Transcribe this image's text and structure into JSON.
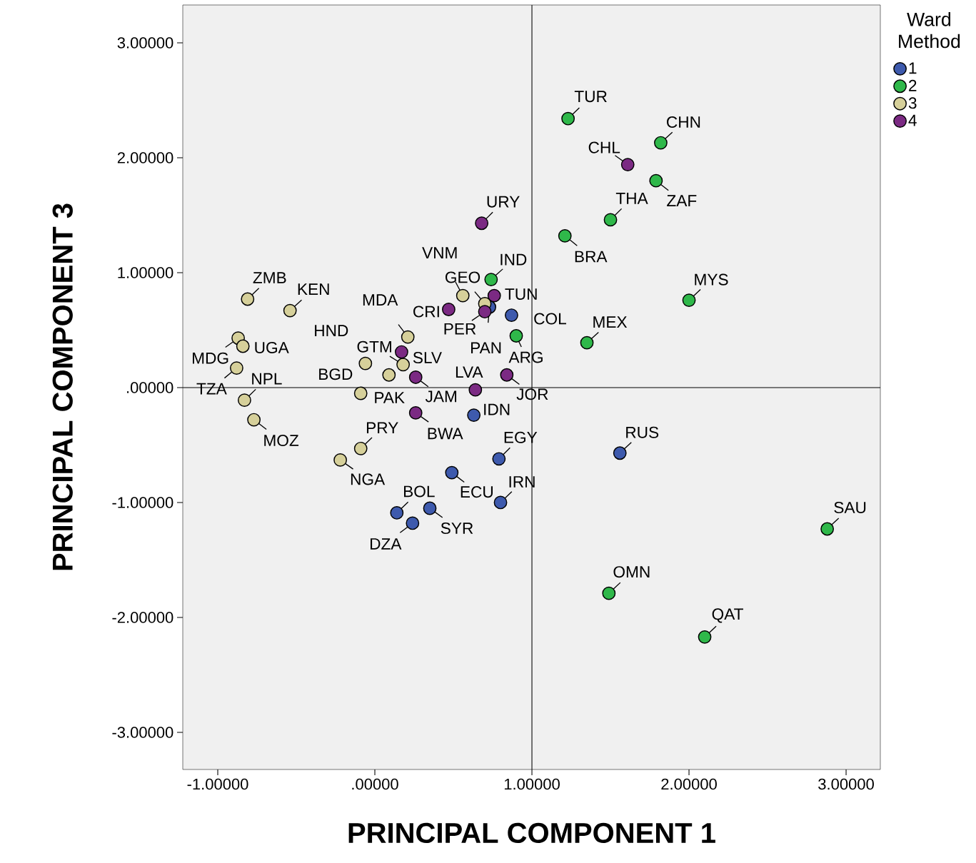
{
  "chart_data": {
    "type": "scatter",
    "xlabel": "PRINCIPAL COMPONENT 1",
    "ylabel": "PRINCIPAL COMPONENT 3",
    "legend_title": "Ward Method",
    "legend": "top right",
    "marker": "circle",
    "grid": false,
    "xlim": [
      -1.2227,
      3.218
    ],
    "ylim": [
      -3.323,
      3.329
    ],
    "xticks": [
      {
        "value": -1,
        "label": "-1.00000"
      },
      {
        "value": 0,
        "label": ".00000"
      },
      {
        "value": 1,
        "label": "1.00000"
      },
      {
        "value": 2,
        "label": "2.00000"
      },
      {
        "value": 3,
        "label": "3.00000"
      }
    ],
    "yticks": [
      {
        "value": -3,
        "label": "-3.00000"
      },
      {
        "value": -2,
        "label": "-2.00000"
      },
      {
        "value": -1,
        "label": "-1.00000"
      },
      {
        "value": 0,
        "label": ".00000"
      },
      {
        "value": 1,
        "label": "1.00000"
      },
      {
        "value": 2,
        "label": "2.00000"
      },
      {
        "value": 3,
        "label": "3.00000"
      }
    ],
    "ref_lines": [
      {
        "axis": "x",
        "value": 1
      },
      {
        "axis": "y",
        "value": 0
      }
    ],
    "series": [
      {
        "name": "1",
        "color": "#3e5aad",
        "x": [
          0.73,
          0.87,
          0.63,
          0.79,
          0.49,
          0.8,
          0.14,
          0.35,
          0.24,
          1.56
        ],
        "values": [
          0.7,
          0.63,
          -0.24,
          -0.62,
          -0.74,
          -1.0,
          -1.09,
          -1.05,
          -1.18,
          -0.57
        ]
      },
      {
        "name": "2",
        "color": "#2fb84a",
        "x": [
          1.23,
          1.82,
          1.79,
          1.5,
          1.21,
          2.0,
          1.35,
          0.74,
          0.9,
          2.88,
          1.49,
          2.1
        ],
        "values": [
          2.34,
          2.13,
          1.8,
          1.46,
          1.32,
          0.76,
          0.39,
          0.94,
          0.45,
          -1.23,
          -1.79,
          -2.17
        ]
      },
      {
        "name": "3",
        "color": "#d6d09a",
        "x": [
          -0.81,
          -0.54,
          -0.87,
          -0.84,
          -0.88,
          -0.83,
          -0.77,
          -0.06,
          0.18,
          0.09,
          -0.09,
          -0.09,
          -0.22,
          0.21,
          0.56,
          0.7
        ],
        "values": [
          0.77,
          0.67,
          0.43,
          0.36,
          0.17,
          -0.11,
          -0.28,
          0.21,
          0.2,
          0.11,
          -0.05,
          -0.53,
          -0.63,
          0.44,
          0.8,
          0.73
        ]
      },
      {
        "name": "4",
        "color": "#7b2a83",
        "x": [
          1.61,
          0.68,
          0.47,
          0.7,
          0.76,
          0.17,
          0.26,
          0.64,
          0.84,
          0.26
        ],
        "values": [
          1.94,
          1.43,
          0.68,
          0.66,
          0.8,
          0.31,
          0.09,
          -0.02,
          0.11,
          -0.22
        ]
      }
    ],
    "annotations": [
      {
        "text": "PAN",
        "x": 0.73,
        "y": 0.7
      },
      {
        "text": "COL",
        "x": 0.87,
        "y": 0.63
      },
      {
        "text": "IDN",
        "x": 0.63,
        "y": -0.24
      },
      {
        "text": "EGY",
        "x": 0.79,
        "y": -0.62
      },
      {
        "text": "ECU",
        "x": 0.49,
        "y": -0.74
      },
      {
        "text": "IRN",
        "x": 0.8,
        "y": -1.0
      },
      {
        "text": "BOL",
        "x": 0.14,
        "y": -1.09
      },
      {
        "text": "SYR",
        "x": 0.35,
        "y": -1.05
      },
      {
        "text": "DZA",
        "x": 0.24,
        "y": -1.18
      },
      {
        "text": "RUS",
        "x": 1.56,
        "y": -0.57
      },
      {
        "text": "TUR",
        "x": 1.23,
        "y": 2.34
      },
      {
        "text": "CHN",
        "x": 1.82,
        "y": 2.13
      },
      {
        "text": "ZAF",
        "x": 1.79,
        "y": 1.8
      },
      {
        "text": "THA",
        "x": 1.5,
        "y": 1.46
      },
      {
        "text": "BRA",
        "x": 1.21,
        "y": 1.32
      },
      {
        "text": "MYS",
        "x": 2.0,
        "y": 0.76
      },
      {
        "text": "MEX",
        "x": 1.35,
        "y": 0.39
      },
      {
        "text": "IND",
        "x": 0.74,
        "y": 0.94
      },
      {
        "text": "ARG",
        "x": 0.9,
        "y": 0.45
      },
      {
        "text": "SAU",
        "x": 2.88,
        "y": -1.23
      },
      {
        "text": "OMN",
        "x": 1.49,
        "y": -1.79
      },
      {
        "text": "QAT",
        "x": 2.1,
        "y": -2.17
      },
      {
        "text": "ZMB",
        "x": -0.81,
        "y": 0.77
      },
      {
        "text": "KEN",
        "x": -0.54,
        "y": 0.67
      },
      {
        "text": "MDG",
        "x": -0.87,
        "y": 0.43
      },
      {
        "text": "UGA",
        "x": -0.84,
        "y": 0.36
      },
      {
        "text": "TZA",
        "x": -0.88,
        "y": 0.17
      },
      {
        "text": "NPL",
        "x": -0.83,
        "y": -0.11
      },
      {
        "text": "MOZ",
        "x": -0.77,
        "y": -0.28
      },
      {
        "text": "HND",
        "x": -0.06,
        "y": 0.21
      },
      {
        "text": "GTM",
        "x": 0.18,
        "y": 0.2
      },
      {
        "text": "BGD",
        "x": 0.09,
        "y": 0.11
      },
      {
        "text": "PAK",
        "x": -0.09,
        "y": -0.05
      },
      {
        "text": "PRY",
        "x": -0.09,
        "y": -0.53
      },
      {
        "text": "NGA",
        "x": -0.22,
        "y": -0.63
      },
      {
        "text": "MDA",
        "x": 0.21,
        "y": 0.44
      },
      {
        "text": "VNM",
        "x": 0.56,
        "y": 0.8
      },
      {
        "text": "GEO",
        "x": 0.7,
        "y": 0.73
      },
      {
        "text": "CHL",
        "x": 1.61,
        "y": 1.94
      },
      {
        "text": "URY",
        "x": 0.68,
        "y": 1.43
      },
      {
        "text": "CRI",
        "x": 0.47,
        "y": 0.68
      },
      {
        "text": "PER",
        "x": 0.7,
        "y": 0.66
      },
      {
        "text": "TUN",
        "x": 0.76,
        "y": 0.8
      },
      {
        "text": "SLV",
        "x": 0.17,
        "y": 0.31
      },
      {
        "text": "JAM",
        "x": 0.26,
        "y": 0.09
      },
      {
        "text": "LVA",
        "x": 0.64,
        "y": -0.02
      },
      {
        "text": "JOR",
        "x": 0.84,
        "y": 0.11
      },
      {
        "text": "BWA",
        "x": 0.26,
        "y": -0.22
      }
    ]
  }
}
